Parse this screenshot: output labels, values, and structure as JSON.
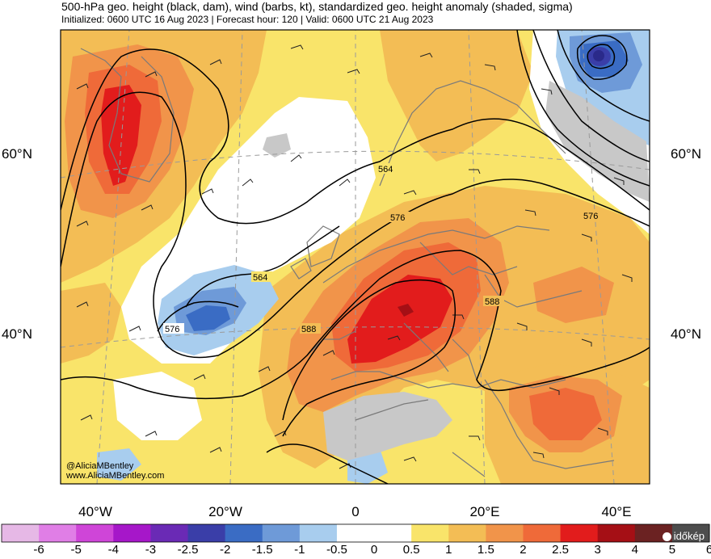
{
  "title": "500-hPa geo. height (black, dam), wind (barbs, kt), standardized geo. height anomaly (shaded, sigma)",
  "subtitle": "Initialized: 0600 UTC 16 Aug 2023 | Forecast hour: 120 | Valid: 0600 UTC 21 Aug 2023",
  "lat_labels": [
    "60°N",
    "40°N"
  ],
  "lon_labels": [
    "40°W",
    "20°W",
    "0",
    "20°E",
    "40°E"
  ],
  "contour_labels": [
    "564",
    "576",
    "564",
    "576",
    "588",
    "588",
    "576"
  ],
  "credits": [
    "@AliciaMBentley",
    "www.AliciaMBentley.com"
  ],
  "colorbar": {
    "ticks": [
      "-6",
      "-5",
      "-4",
      "-3",
      "-2.5",
      "-2",
      "-1.5",
      "-1",
      "-0.5",
      "0",
      "0.5",
      "1",
      "1.5",
      "2",
      "2.5",
      "3",
      "4",
      "5",
      "6"
    ],
    "colors": [
      "#e6b8e6",
      "#e07ee6",
      "#cf45d8",
      "#a617c9",
      "#6a2ab5",
      "#3a3ea8",
      "#3a6cc4",
      "#6e9ad8",
      "#a8cdee",
      "#ffffff",
      "#ffffff",
      "#f9e46a",
      "#f3bd55",
      "#f1944a",
      "#ef6a39",
      "#e21c1c",
      "#a50f15",
      "#6b2222",
      "#4d4d4d"
    ]
  },
  "logo_text": "időkép",
  "colors": {
    "land_outline": "#7a7a7a",
    "graticule": "#9a9a9a",
    "contour": "#000000"
  }
}
